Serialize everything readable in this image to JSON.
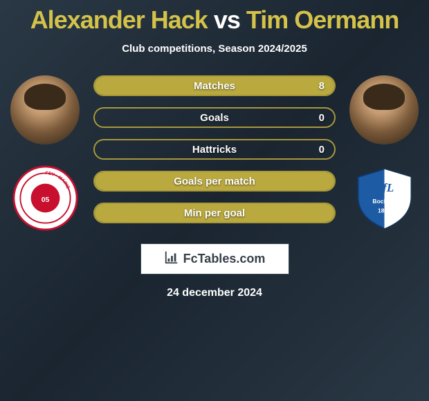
{
  "title": {
    "player1": "Alexander Hack",
    "vs": "vs",
    "player2": "Tim Oermann",
    "color_players": "#d4c24a",
    "color_vs": "#ffffff",
    "fontsize": 36
  },
  "subtitle": "Club competitions, Season 2024/2025",
  "bars": {
    "border_color": "#a8983a",
    "fill_color": "#b9a93e",
    "empty_color": "transparent",
    "label_color": "#ffffff",
    "label_fontsize": 15,
    "items": [
      {
        "label": "Matches",
        "value": "8",
        "fill_pct": 100
      },
      {
        "label": "Goals",
        "value": "0",
        "fill_pct": 0
      },
      {
        "label": "Hattricks",
        "value": "0",
        "fill_pct": 0
      },
      {
        "label": "Goals per match",
        "value": "",
        "fill_pct": 100
      },
      {
        "label": "Min per goal",
        "value": "",
        "fill_pct": 100
      }
    ]
  },
  "brand": "FcTables.com",
  "date": "24 december 2024",
  "background": {
    "gradient_from": "#2a3845",
    "gradient_mid": "#1a2530",
    "gradient_to": "#2a3845"
  },
  "left_club": {
    "name": "FSV Mainz 05",
    "primary": "#c8102e",
    "secondary": "#ffffff"
  },
  "right_club": {
    "name": "VfL Bochum 1848",
    "primary": "#1d5ba4",
    "secondary": "#ffffff"
  }
}
